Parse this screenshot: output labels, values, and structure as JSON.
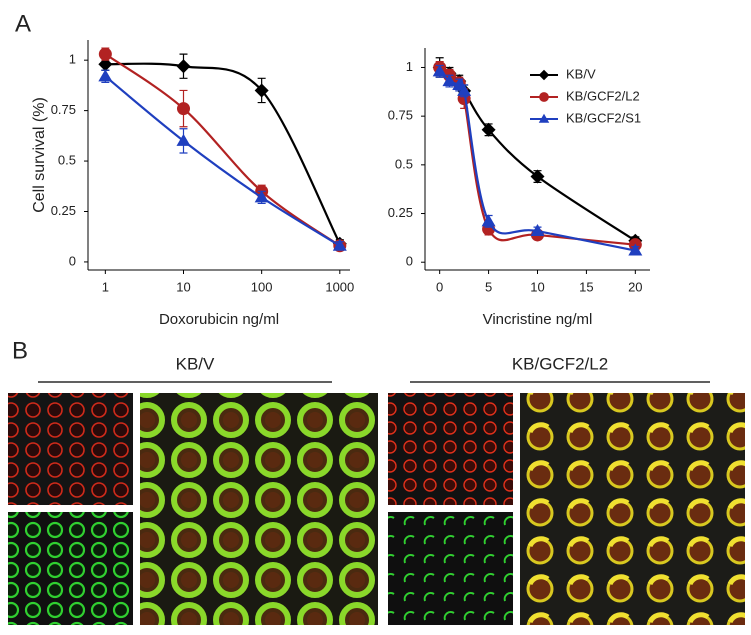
{
  "panel_labels": [
    "A",
    "B"
  ],
  "chart_data": [
    {
      "type": "line",
      "xscale": "log",
      "ylabel": "Cell survival (%)",
      "xlabel": "Doxorubicin ng/ml",
      "x": [
        1,
        10,
        100,
        1000
      ],
      "xlim": [
        0.6,
        1350
      ],
      "xticks": [
        1,
        10,
        100,
        1000
      ],
      "ylim": [
        -0.04,
        1.1
      ],
      "yticks": [
        0,
        0.25,
        0.5,
        0.75,
        1
      ],
      "series": [
        {
          "color": "#000000",
          "marker": "diamond",
          "values": [
            0.98,
            0.97,
            0.85,
            0.09
          ],
          "errors": [
            0.03,
            0.06,
            0.06,
            0.02
          ]
        },
        {
          "color": "#b22222",
          "marker": "circle",
          "values": [
            1.03,
            0.76,
            0.35,
            0.08
          ],
          "errors": [
            0.03,
            0.09,
            0.03,
            0.02
          ]
        },
        {
          "color": "#1f3fbf",
          "marker": "triangle",
          "values": [
            0.92,
            0.6,
            0.32,
            0.08
          ],
          "errors": [
            0.03,
            0.06,
            0.03,
            0.02
          ]
        }
      ]
    },
    {
      "type": "line",
      "xlabel": "Vincristine ng/ml",
      "x": [
        0,
        1,
        2,
        2.5,
        5,
        10,
        20
      ],
      "xlim": [
        -1.5,
        21.5
      ],
      "xticks": [
        0,
        5,
        10,
        15,
        20
      ],
      "ylim": [
        -0.04,
        1.1
      ],
      "yticks": [
        0,
        0.25,
        0.5,
        0.75,
        1
      ],
      "legend": "upper right",
      "series": [
        {
          "name": "KB/V",
          "color": "#000000",
          "marker": "diamond",
          "values": [
            1.0,
            0.97,
            0.93,
            0.88,
            0.68,
            0.44,
            0.11
          ],
          "errors": [
            0.05,
            0.03,
            0.03,
            0.03,
            0.03,
            0.03,
            0.02
          ]
        },
        {
          "name": "KB/GCF2/L2",
          "color": "#b22222",
          "marker": "circle",
          "values": [
            1.0,
            0.96,
            0.92,
            0.84,
            0.17,
            0.14,
            0.09
          ],
          "errors": [
            0.03,
            0.03,
            0.03,
            0.05,
            0.03,
            0.02,
            0.02
          ]
        },
        {
          "name": "KB/GCF2/S1",
          "color": "#1f3fbf",
          "marker": "triangle",
          "values": [
            0.98,
            0.93,
            0.91,
            0.88,
            0.21,
            0.16,
            0.06
          ],
          "errors": [
            0.03,
            0.03,
            0.03,
            0.03,
            0.03,
            0.02,
            0.02
          ]
        }
      ]
    }
  ],
  "images": {
    "groups": [
      "KB/V",
      "KB/GCF2/L2"
    ]
  }
}
